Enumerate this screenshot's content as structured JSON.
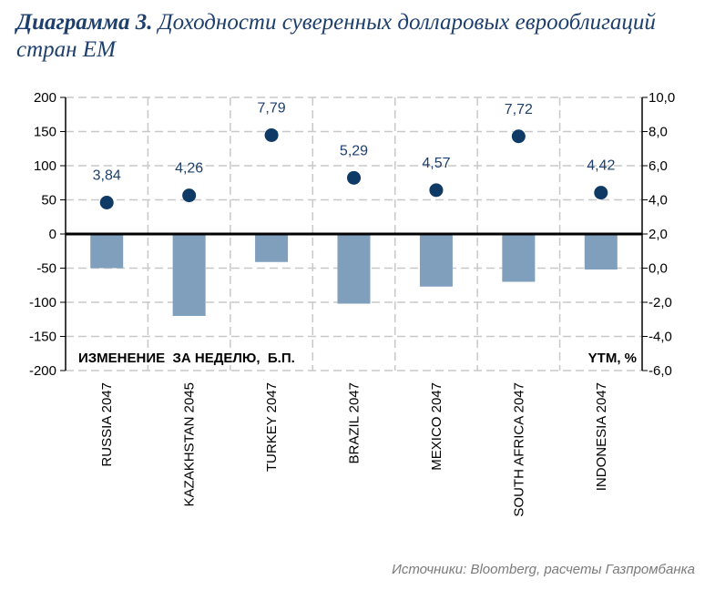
{
  "title": {
    "bold": "Диаграмма 3.",
    "rest": "Доходности суверенных долларовых еврооблигаций стран ЕМ"
  },
  "source": "Источники: Bloomberg, расчеты Газпромбанка",
  "colors": {
    "bar": "#7f9fbd",
    "dot": "#0f3a66",
    "label": "#1d3f6e",
    "grid": "#c8c8c8"
  },
  "chart_data": {
    "type": "bar",
    "categories": [
      "RUSSIA  2047",
      "KAZAKHSTAN 2045",
      "TURKEY 2047",
      "BRAZIL 2047",
      "MEXICO 2047",
      "SOUTH AFRICA 2047",
      "INDONESIA  2047"
    ],
    "series": [
      {
        "name": "ИЗМЕНЕНИЕ  ЗА НЕДЕЛЮ,  Б.П.",
        "type": "bar",
        "axis": "left",
        "values": [
          -50,
          -120,
          -41,
          -102,
          -77,
          -70,
          -52
        ]
      },
      {
        "name": "YTM, %",
        "type": "scatter",
        "axis": "right",
        "values": [
          3.84,
          4.26,
          7.79,
          5.29,
          4.57,
          7.72,
          4.42
        ],
        "labels": [
          "3,84",
          "4,26",
          "7,79",
          "5,29",
          "4,57",
          "7,72",
          "4,42"
        ]
      }
    ],
    "y_left": {
      "range": [
        -200,
        200
      ],
      "ticks": [
        "200",
        "150",
        "100",
        "50",
        "0",
        "-50",
        "-100",
        "-150",
        "-200"
      ]
    },
    "y_right": {
      "range": [
        -6,
        10
      ],
      "ticks": [
        "10,0",
        "8,0",
        "6,0",
        "4,0",
        "2,0",
        "0,0",
        "-2,0",
        "-4,0",
        "-6,0"
      ]
    },
    "annotations": {
      "left": "ИЗМЕНЕНИЕ  ЗА НЕДЕЛЮ,  Б.П.",
      "right": "YTM, %"
    },
    "grid": true
  }
}
